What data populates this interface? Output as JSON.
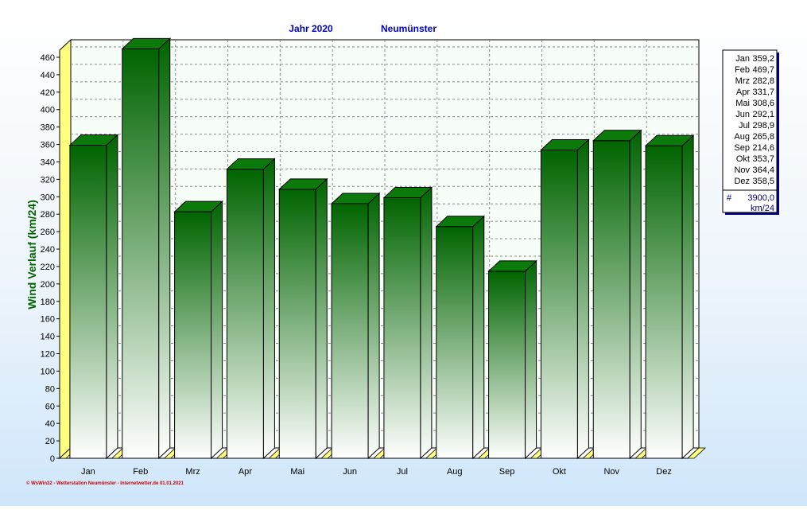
{
  "header": {
    "title_year": "Jahr  2020",
    "title_station": "Neumünster"
  },
  "footer": {
    "credit": "© WsWin32 - Wetterstation Neumünster - Internetwetter.de  01.01.2021"
  },
  "colors": {
    "bar_dark": "#006400",
    "bar_light": "#ffffff",
    "bar_top": "#0b7a0b",
    "bar_side": "#0a5c0a",
    "wall": "#f7fdf7",
    "floor_and_wall_edge": "#ffff80",
    "title": "#0000cc",
    "ylabel": "#006400",
    "credit": "#cc0000",
    "legend_total": "#000080"
  },
  "legend": {
    "items": [
      {
        "label": "Jan",
        "value": "359,2"
      },
      {
        "label": "Feb",
        "value": "469,7"
      },
      {
        "label": "Mrz",
        "value": "282,8"
      },
      {
        "label": "Apr",
        "value": "331,7"
      },
      {
        "label": "Mai",
        "value": "308,6"
      },
      {
        "label": "Jun",
        "value": "292,1"
      },
      {
        "label": "Jul",
        "value": "298,9"
      },
      {
        "label": "Aug",
        "value": "265,8"
      },
      {
        "label": "Sep",
        "value": "214,6"
      },
      {
        "label": "Okt",
        "value": "353,7"
      },
      {
        "label": "Nov",
        "value": "364,4"
      },
      {
        "label": "Dez",
        "value": "358,5"
      }
    ],
    "total_symbol": "#",
    "total_value": "3900,0",
    "total_unit": "km/24"
  },
  "chart_data": {
    "type": "bar",
    "title": "Jahr  2020    Neumünster",
    "ylabel": "Wind Verlauf  (km/24)",
    "xlabel": "",
    "categories": [
      "Jan",
      "Feb",
      "Mrz",
      "Apr",
      "Mai",
      "Jun",
      "Jul",
      "Aug",
      "Sep",
      "Okt",
      "Nov",
      "Dez"
    ],
    "values": [
      359.2,
      469.7,
      282.8,
      331.7,
      308.6,
      292.1,
      298.9,
      265.8,
      214.6,
      353.7,
      364.4,
      358.5
    ],
    "ylim": [
      0,
      460
    ],
    "yticks": [
      0,
      20,
      40,
      60,
      80,
      100,
      120,
      140,
      160,
      180,
      200,
      220,
      240,
      260,
      280,
      300,
      320,
      340,
      360,
      380,
      400,
      420,
      440,
      460
    ],
    "grid": true,
    "legend_position": "right",
    "style": "3d"
  }
}
